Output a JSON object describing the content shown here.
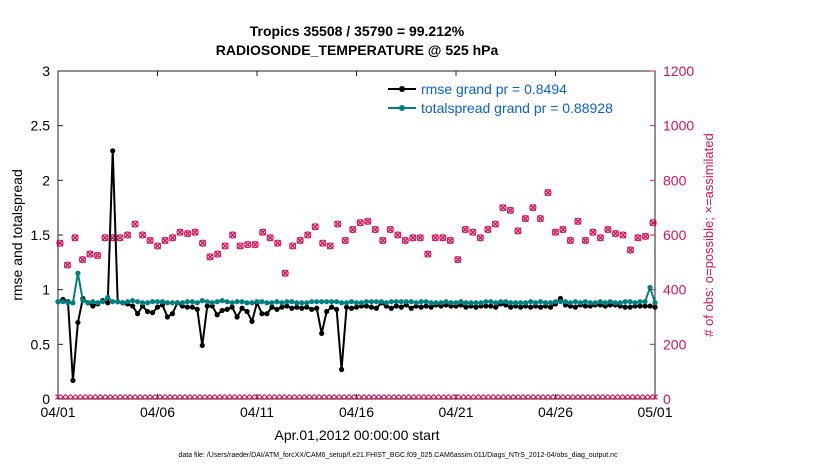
{
  "chart_data": {
    "type": "line",
    "title": "Tropics 35508 / 35790 = 99.212%",
    "subtitle": "RADIOSONDE_TEMPERATURE @ 525 hPa",
    "xlabel": "Apr.01,2012 00:00:00 start",
    "ylabel_left": "rmse and totalspread",
    "ylabel_right": "# of obs: o=possible; ×=assimilated",
    "ylim_left": [
      0,
      3
    ],
    "ylim_right": [
      0,
      1200
    ],
    "xlim": [
      0,
      60
    ],
    "yticks_left": [
      "0",
      "0.5",
      "1",
      "1.5",
      "2",
      "2.5",
      "3"
    ],
    "yticks_right": [
      "0",
      "200",
      "400",
      "600",
      "800",
      "1000",
      "1200"
    ],
    "xticks": [
      {
        "x": 0,
        "label": "04/01"
      },
      {
        "x": 10,
        "label": "04/06"
      },
      {
        "x": 20,
        "label": "04/11"
      },
      {
        "x": 30,
        "label": "04/16"
      },
      {
        "x": 40,
        "label": "04/21"
      },
      {
        "x": 50,
        "label": "04/26"
      },
      {
        "x": 60,
        "label": "05/01"
      }
    ],
    "series": [
      {
        "name": "rmse grand pr = 0.8494",
        "color": "#000000",
        "axis": "left",
        "values": [
          0.89,
          0.91,
          0.89,
          0.17,
          0.7,
          0.92,
          0.88,
          0.85,
          0.87,
          0.9,
          0.88,
          2.27,
          0.89,
          0.88,
          0.87,
          0.85,
          0.78,
          0.85,
          0.8,
          0.79,
          0.84,
          0.86,
          0.75,
          0.78,
          0.88,
          0.85,
          0.84,
          0.84,
          0.82,
          0.49,
          0.85,
          0.85,
          0.77,
          0.81,
          0.82,
          0.84,
          0.75,
          0.83,
          0.8,
          0.71,
          0.88,
          0.78,
          0.78,
          0.84,
          0.82,
          0.84,
          0.85,
          0.83,
          0.84,
          0.83,
          0.84,
          0.82,
          0.83,
          0.6,
          0.8,
          0.84,
          0.82,
          0.27,
          0.84,
          0.83,
          0.84,
          0.85,
          0.85,
          0.84,
          0.83,
          0.88,
          0.85,
          0.83,
          0.85,
          0.84,
          0.86,
          0.83,
          0.85,
          0.84,
          0.85,
          0.84,
          0.86,
          0.85,
          0.86,
          0.85,
          0.85,
          0.86,
          0.84,
          0.85,
          0.84,
          0.85,
          0.85,
          0.85,
          0.84,
          0.87,
          0.86,
          0.84,
          0.85,
          0.84,
          0.85,
          0.84,
          0.85,
          0.84,
          0.85,
          0.84,
          0.87,
          0.92,
          0.86,
          0.85,
          0.84,
          0.86,
          0.85,
          0.85,
          0.86,
          0.86,
          0.85,
          0.86,
          0.86,
          0.85,
          0.84,
          0.84,
          0.85,
          0.85,
          0.85,
          0.85,
          0.84
        ]
      },
      {
        "name": "totalspread grand pr = 0.88928",
        "color": "#008080",
        "axis": "left",
        "values": [
          0.89,
          0.89,
          0.88,
          0.88,
          1.15,
          0.9,
          0.88,
          0.89,
          0.88,
          0.89,
          0.93,
          0.89,
          0.89,
          0.88,
          0.89,
          0.9,
          0.89,
          0.88,
          0.88,
          0.89,
          0.89,
          0.89,
          0.88,
          0.88,
          0.88,
          0.88,
          0.89,
          0.89,
          0.88,
          0.9,
          0.89,
          0.88,
          0.89,
          0.9,
          0.89,
          0.88,
          0.89,
          0.89,
          0.88,
          0.88,
          0.89,
          0.89,
          0.88,
          0.88,
          0.89,
          0.88,
          0.89,
          0.89,
          0.88,
          0.88,
          0.88,
          0.89,
          0.89,
          0.89,
          0.89,
          0.89,
          0.89,
          0.88,
          0.88,
          0.89,
          0.88,
          0.88,
          0.89,
          0.89,
          0.89,
          0.89,
          0.88,
          0.89,
          0.89,
          0.89,
          0.89,
          0.89,
          0.88,
          0.89,
          0.89,
          0.88,
          0.88,
          0.88,
          0.89,
          0.88,
          0.88,
          0.89,
          0.88,
          0.88,
          0.88,
          0.88,
          0.89,
          0.89,
          0.88,
          0.89,
          0.89,
          0.88,
          0.88,
          0.88,
          0.88,
          0.89,
          0.88,
          0.89,
          0.88,
          0.88,
          0.89,
          0.89,
          0.89,
          0.88,
          0.89,
          0.88,
          0.89,
          0.88,
          0.88,
          0.89,
          0.88,
          0.89,
          0.88,
          0.88,
          0.89,
          0.89,
          0.88,
          0.89,
          0.89,
          1.02,
          0.88
        ]
      }
    ],
    "obs_possible": {
      "name": "possible",
      "color": "#d4145a",
      "axis": "right",
      "values": [
        570,
        490,
        590,
        510,
        530,
        525,
        590,
        590,
        590,
        600,
        640,
        600,
        580,
        560,
        580,
        590,
        610,
        605,
        610,
        570,
        520,
        530,
        560,
        600,
        560,
        565,
        565,
        610,
        590,
        570,
        460,
        560,
        580,
        600,
        630,
        570,
        560,
        640,
        580,
        620,
        645,
        650,
        620,
        580,
        620,
        600,
        580,
        590,
        590,
        530,
        590,
        590,
        580,
        510,
        620,
        610,
        590,
        620,
        640,
        700,
        690,
        615,
        660,
        700,
        660,
        755,
        610,
        620,
        580,
        650,
        580,
        610,
        590,
        620,
        605,
        600,
        545,
        590,
        595,
        645
      ]
    },
    "obs_assimilated": {
      "name": "assimilated",
      "color": "#d4145a",
      "axis": "right",
      "values": [
        570,
        490,
        590,
        510,
        530,
        525,
        590,
        590,
        590,
        600,
        640,
        600,
        580,
        560,
        580,
        590,
        610,
        605,
        610,
        570,
        520,
        530,
        560,
        600,
        560,
        565,
        565,
        610,
        590,
        570,
        460,
        560,
        580,
        600,
        630,
        570,
        560,
        640,
        580,
        620,
        645,
        650,
        620,
        580,
        620,
        600,
        580,
        590,
        590,
        530,
        590,
        590,
        580,
        510,
        620,
        610,
        590,
        620,
        640,
        700,
        690,
        615,
        660,
        700,
        660,
        755,
        610,
        620,
        580,
        650,
        580,
        610,
        590,
        620,
        605,
        600,
        545,
        590,
        595,
        645
      ]
    },
    "legend": [
      {
        "label": "rmse grand pr = 0.8494",
        "color": "#000000"
      },
      {
        "label": "totalspread grand pr = 0.88928",
        "color": "#008080"
      }
    ],
    "legend_position": "top-right"
  },
  "footer": "data file: /Users/raeder/DAI/ATM_forcXX/CAM6_setup/f.e21.FHIST_BGC.f09_025.CAM6assim.011/Diags_NTrS_2012-04/obs_diag_output.nc"
}
